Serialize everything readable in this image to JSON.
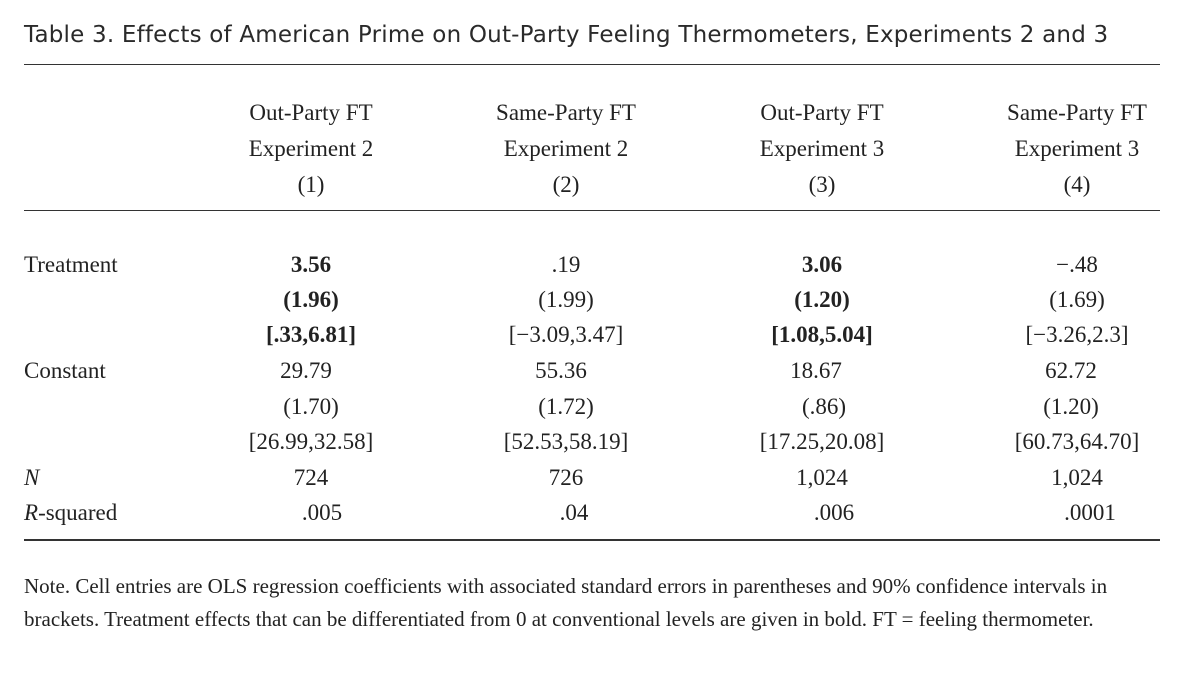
{
  "title": "Table 3. Effects of American Prime on Out-Party Feeling Thermometers, Experiments 2 and 3",
  "columns": [
    {
      "line1": "Out-Party FT",
      "line2": "Experiment 2",
      "number": "(1)"
    },
    {
      "line1": "Same-Party FT",
      "line2": "Experiment 2",
      "number": "(2)"
    },
    {
      "line1": "Out-Party FT",
      "line2": "Experiment 3",
      "number": "(3)"
    },
    {
      "line1": "Same-Party FT",
      "line2": "Experiment 3",
      "number": "(4)"
    }
  ],
  "rows": {
    "treatment": {
      "label": "Treatment",
      "coef": [
        "3.56",
        ".19",
        "3.06",
        "−.48"
      ],
      "se": [
        "(1.96)",
        "(1.99)",
        "(1.20)",
        "(1.69)"
      ],
      "ci": [
        "[.33,6.81]",
        "[−3.09,3.47]",
        "[1.08,5.04]",
        "[−3.26,2.3]"
      ],
      "bold": [
        true,
        false,
        true,
        false
      ]
    },
    "constant": {
      "label": "Constant",
      "coef": [
        "29.79",
        "55.36",
        "18.67",
        "62.72"
      ],
      "se": [
        "(1.70)",
        "(1.72)",
        "(.86)",
        "(1.20)"
      ],
      "ci": [
        "[26.99,32.58]",
        "[52.53,58.19]",
        "[17.25,20.08]",
        "[60.73,64.70]"
      ]
    },
    "n": {
      "label": "N",
      "values": [
        "724",
        "726",
        "1,024",
        "1,024"
      ]
    },
    "rsquared": {
      "label_italic": "R",
      "label_rest": "-squared",
      "values": [
        ".005",
        ".04",
        ".006",
        ".0001"
      ]
    }
  },
  "note": "Note. Cell entries are OLS regression coefficients with associated standard errors in parentheses and 90% confidence intervals in brackets. Treatment effects that can be differentiated from 0 at conventional levels are given in bold. FT = feeling thermometer."
}
